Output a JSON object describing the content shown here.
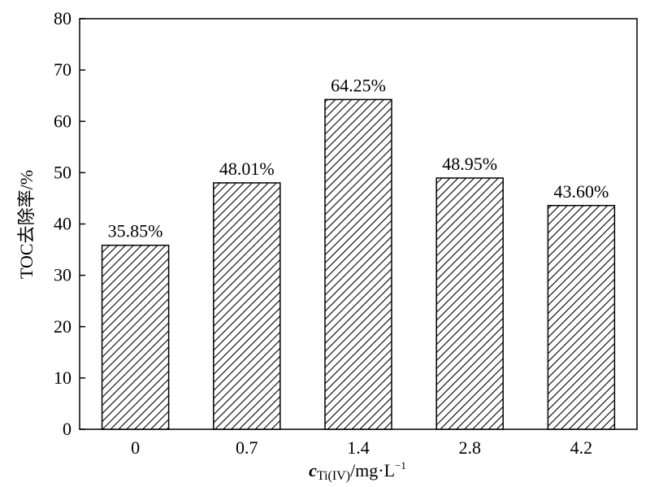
{
  "chart_data": {
    "type": "bar",
    "categories": [
      "0",
      "0.7",
      "1.4",
      "2.8",
      "4.2"
    ],
    "values": [
      35.85,
      48.01,
      64.25,
      48.95,
      43.6
    ],
    "data_labels": [
      "35.85%",
      "48.01%",
      "64.25%",
      "48.95%",
      "43.60%"
    ],
    "ylim": [
      0,
      80
    ],
    "yticks": [
      0,
      10,
      20,
      30,
      40,
      50,
      60,
      70,
      80
    ],
    "ylabel": "TOC去除率/%",
    "xlabel": {
      "main": "c",
      "subscript": "Ti(IV)",
      "unit": "/mg·L",
      "superscript": "−1"
    },
    "bar_fill": "diagonal-hatch",
    "bar_color": "#000000",
    "grid": false,
    "legend": "none"
  }
}
